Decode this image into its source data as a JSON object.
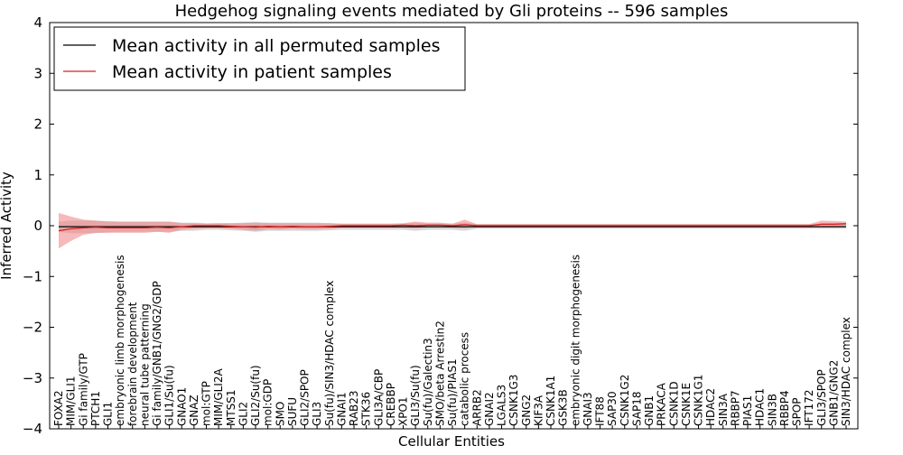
{
  "chart_data": {
    "type": "line",
    "title": "Hedgehog signaling events mediated by Gli proteins -- 596 samples",
    "xlabel": "Cellular Entities",
    "ylabel": "Inferred Activity",
    "ylim": [
      -4,
      4
    ],
    "yticks": [
      -4,
      -3,
      -2,
      -1,
      0,
      1,
      2,
      3,
      4
    ],
    "ytick_labels": [
      "−4",
      "−3",
      "−2",
      "−1",
      "0",
      "1",
      "2",
      "3",
      "4"
    ],
    "legend_position": "top-left",
    "categories": [
      "FOXA2",
      "MIM/GLI1",
      "Gi family/GTP",
      "PTCH1",
      "GLI1",
      "embryonic limb morphogenesis",
      "forebrain development",
      "neural tube patterning",
      "Gi family/GNB1/GNG2/GDP",
      "GLI1/Su(fu)",
      "GNAO1",
      "GNAZ",
      "mol:GTP",
      "MIM/GLI2A",
      "MTSS1",
      "GLI2",
      "GLI2/Su(fu)",
      "mol:GDP",
      "SMO",
      "SUFU",
      "GLI2/SPOP",
      "GLI3",
      "Su(fu)/SIN3/HDAC complex",
      "GNAI1",
      "RAB23",
      "STK36",
      "GLI3A/CBP",
      "CREBBP",
      "XPO1",
      "GLI3/Su(fu)",
      "Su(fu)/Galectin3",
      "SMO/beta Arrestin2",
      "Su(fu)/PIAS1",
      "catabolic process",
      "ARRB2",
      "GNAI2",
      "LGALS3",
      "CSNK1G3",
      "GNG2",
      "KIF3A",
      "CSNK1A1",
      "GSK3B",
      "embryonic digit morphogenesis",
      "GNAI3",
      "IFT88",
      "SAP30",
      "CSNK1G2",
      "SAP18",
      "GNB1",
      "PRKACA",
      "CSNK1D",
      "CSNK1E",
      "CSNK1G1",
      "HDAC2",
      "SIN3A",
      "RBBP7",
      "PIAS1",
      "HDAC1",
      "SIN3B",
      "RBBP4",
      "SPOP",
      "IFT172",
      "GLI3/SPOP",
      "GNB1/GNG2",
      "SIN3/HDAC complex"
    ],
    "series": [
      {
        "name": "Mean activity in all permuted samples",
        "color": "#000000",
        "band_color": "#b0b0b0",
        "values": [
          -0.02,
          -0.02,
          -0.02,
          -0.02,
          -0.02,
          -0.02,
          -0.02,
          -0.02,
          -0.02,
          -0.02,
          -0.02,
          -0.02,
          -0.02,
          -0.02,
          -0.02,
          -0.02,
          -0.02,
          -0.02,
          -0.02,
          -0.02,
          -0.02,
          -0.02,
          -0.02,
          -0.02,
          -0.02,
          -0.02,
          -0.02,
          -0.02,
          -0.02,
          -0.02,
          -0.02,
          -0.02,
          -0.02,
          -0.02,
          -0.02,
          -0.02,
          -0.02,
          -0.02,
          -0.02,
          -0.02,
          -0.02,
          -0.02,
          -0.02,
          -0.02,
          -0.02,
          -0.02,
          -0.02,
          -0.02,
          -0.02,
          -0.02,
          -0.02,
          -0.02,
          -0.02,
          -0.02,
          -0.02,
          -0.02,
          -0.02,
          -0.02,
          -0.02,
          -0.02,
          -0.02,
          -0.02,
          -0.02,
          -0.02,
          -0.02
        ],
        "lower": [
          -0.12,
          -0.15,
          -0.15,
          -0.15,
          -0.13,
          -0.12,
          -0.12,
          -0.12,
          -0.12,
          -0.12,
          -0.1,
          -0.1,
          -0.08,
          -0.08,
          -0.09,
          -0.1,
          -0.12,
          -0.1,
          -0.1,
          -0.1,
          -0.1,
          -0.1,
          -0.09,
          -0.08,
          -0.08,
          -0.08,
          -0.08,
          -0.08,
          -0.08,
          -0.1,
          -0.08,
          -0.08,
          -0.08,
          -0.1,
          -0.06,
          -0.06,
          -0.06,
          -0.06,
          -0.06,
          -0.06,
          -0.06,
          -0.06,
          -0.06,
          -0.06,
          -0.06,
          -0.06,
          -0.06,
          -0.06,
          -0.06,
          -0.06,
          -0.06,
          -0.06,
          -0.06,
          -0.06,
          -0.06,
          -0.06,
          -0.06,
          -0.06,
          -0.06,
          -0.06,
          -0.06,
          -0.06,
          -0.06,
          -0.06,
          -0.06
        ],
        "upper": [
          0.08,
          0.1,
          0.1,
          0.1,
          0.09,
          0.08,
          0.08,
          0.08,
          0.08,
          0.08,
          0.06,
          0.06,
          0.05,
          0.05,
          0.05,
          0.06,
          0.07,
          0.06,
          0.06,
          0.06,
          0.06,
          0.06,
          0.05,
          0.04,
          0.04,
          0.04,
          0.04,
          0.04,
          0.04,
          0.06,
          0.04,
          0.04,
          0.04,
          0.06,
          0.03,
          0.03,
          0.03,
          0.03,
          0.03,
          0.03,
          0.03,
          0.03,
          0.03,
          0.03,
          0.03,
          0.03,
          0.03,
          0.03,
          0.03,
          0.03,
          0.03,
          0.03,
          0.03,
          0.03,
          0.03,
          0.03,
          0.03,
          0.03,
          0.03,
          0.03,
          0.03,
          0.03,
          0.03,
          0.03,
          0.03
        ]
      },
      {
        "name": "Mean activity in patient samples",
        "color": "#d62020",
        "band_color": "#f08080",
        "values": [
          -0.1,
          -0.06,
          -0.04,
          -0.03,
          -0.04,
          -0.04,
          -0.04,
          -0.04,
          -0.03,
          -0.04,
          -0.02,
          0.0,
          0.0,
          0.0,
          -0.01,
          -0.02,
          -0.03,
          -0.01,
          -0.02,
          -0.01,
          -0.02,
          -0.02,
          -0.01,
          0.0,
          0.0,
          0.0,
          0.0,
          0.0,
          0.01,
          0.0,
          0.01,
          0.01,
          0.0,
          0.02,
          0.0,
          0.0,
          0.0,
          0.0,
          0.0,
          0.0,
          0.0,
          0.0,
          0.0,
          0.0,
          0.0,
          0.0,
          0.0,
          0.0,
          0.0,
          0.0,
          0.0,
          0.0,
          0.0,
          0.0,
          0.0,
          0.0,
          0.0,
          0.0,
          0.0,
          0.0,
          0.0,
          0.0,
          0.03,
          0.03,
          0.04
        ],
        "lower": [
          -0.45,
          -0.3,
          -0.18,
          -0.14,
          -0.14,
          -0.14,
          -0.14,
          -0.14,
          -0.12,
          -0.14,
          -0.08,
          -0.06,
          -0.05,
          -0.05,
          -0.06,
          -0.08,
          -0.1,
          -0.07,
          -0.08,
          -0.06,
          -0.07,
          -0.07,
          -0.06,
          -0.04,
          -0.04,
          -0.04,
          -0.04,
          -0.04,
          -0.04,
          -0.05,
          -0.03,
          -0.03,
          -0.04,
          -0.05,
          -0.02,
          -0.02,
          -0.02,
          -0.02,
          -0.02,
          -0.02,
          -0.02,
          -0.02,
          -0.02,
          -0.02,
          -0.02,
          -0.02,
          -0.02,
          -0.02,
          -0.02,
          -0.02,
          -0.02,
          -0.02,
          -0.02,
          -0.02,
          -0.02,
          -0.02,
          -0.02,
          -0.02,
          -0.02,
          -0.02,
          -0.02,
          -0.02,
          -0.01,
          -0.01,
          0.0
        ],
        "upper": [
          0.25,
          0.18,
          0.12,
          0.1,
          0.08,
          0.08,
          0.08,
          0.08,
          0.08,
          0.08,
          0.05,
          0.05,
          0.04,
          0.05,
          0.05,
          0.05,
          0.06,
          0.05,
          0.05,
          0.05,
          0.05,
          0.05,
          0.05,
          0.04,
          0.04,
          0.04,
          0.04,
          0.04,
          0.05,
          0.08,
          0.06,
          0.06,
          0.04,
          0.12,
          0.03,
          0.03,
          0.03,
          0.03,
          0.03,
          0.03,
          0.03,
          0.03,
          0.03,
          0.03,
          0.03,
          0.03,
          0.03,
          0.03,
          0.03,
          0.03,
          0.03,
          0.03,
          0.03,
          0.03,
          0.03,
          0.03,
          0.03,
          0.03,
          0.03,
          0.03,
          0.03,
          0.03,
          0.1,
          0.09,
          0.08
        ]
      }
    ]
  }
}
